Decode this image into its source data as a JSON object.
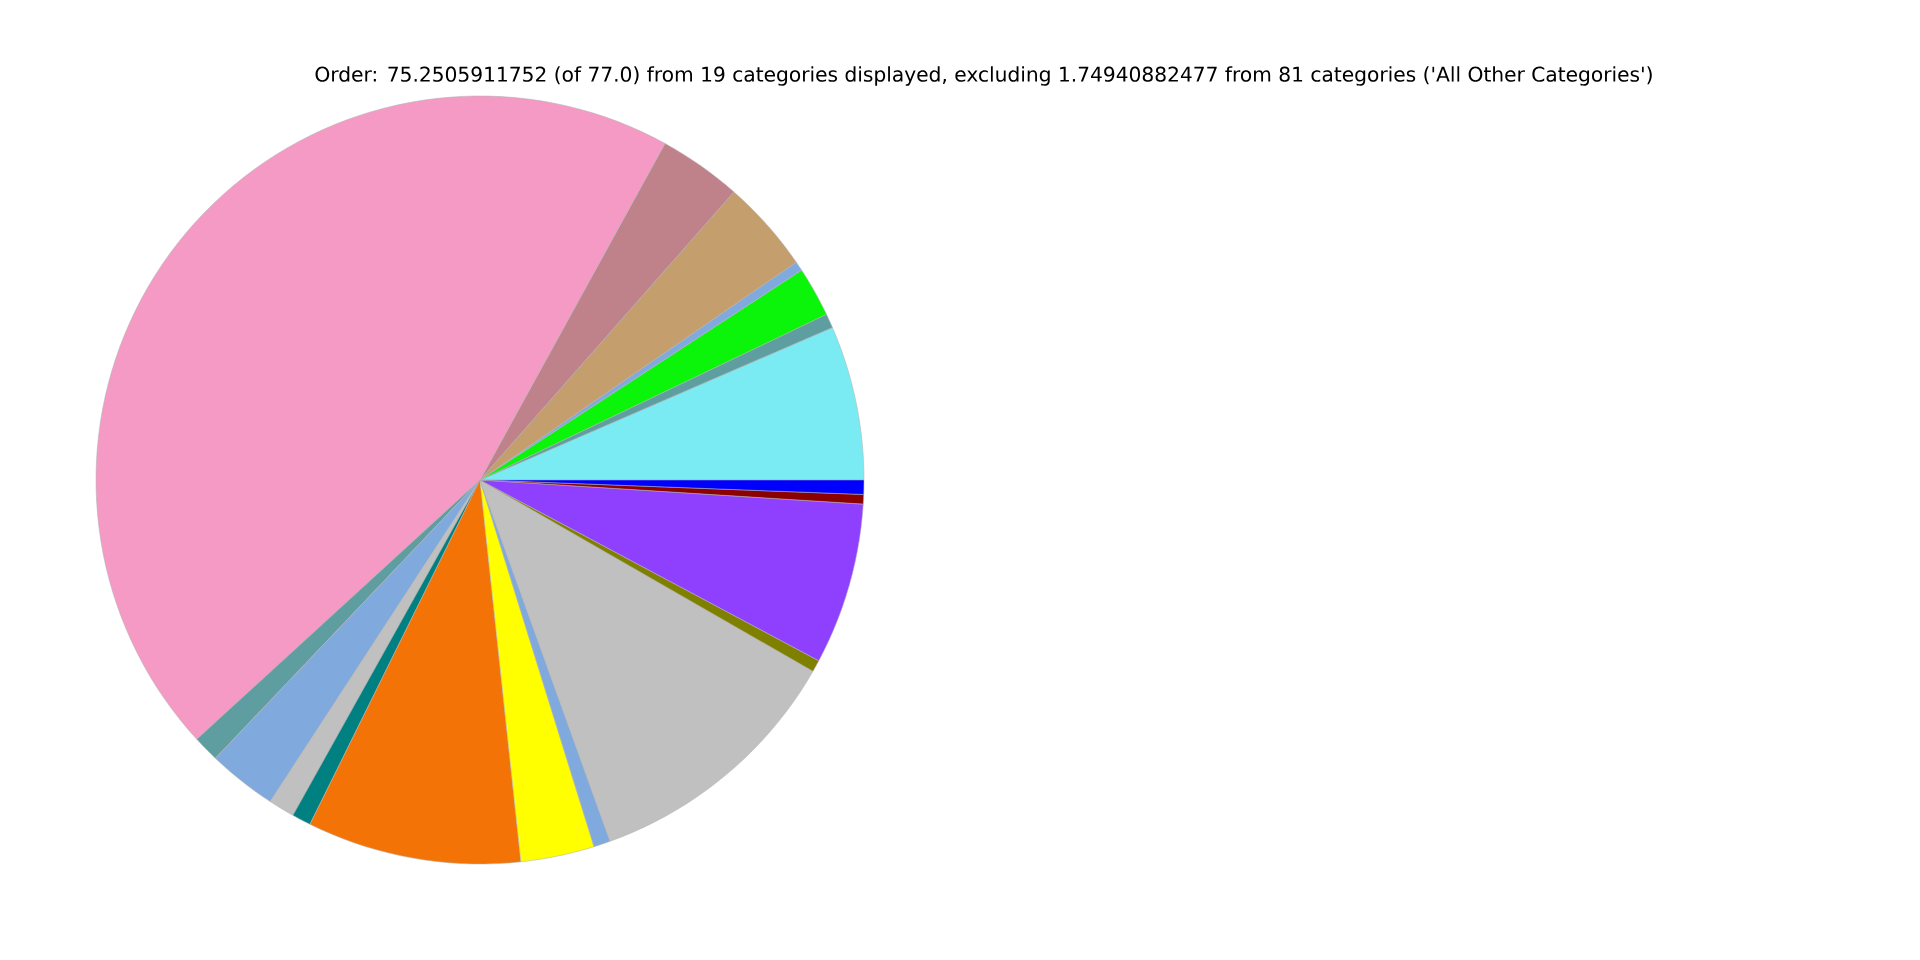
{
  "chart_data": {
    "type": "pie",
    "title": "Order: 75.2505911752 (of 77.0) from 19 categories displayed, excluding 1.74940882477 from 81 categories ('All Other Categories')",
    "categories": [
      null,
      null,
      null,
      null,
      null,
      null,
      null,
      null,
      null,
      null,
      null,
      null,
      null,
      null,
      null,
      null,
      null,
      null,
      null
    ],
    "values": [
      6.5,
      0.6,
      2.1,
      0.4,
      3.9,
      3.5,
      44.8,
      1.1,
      2.9,
      1.1,
      0.8,
      9.0,
      3.1,
      0.7,
      11.2,
      0.5,
      6.8,
      0.4,
      0.6
    ],
    "colors": [
      "#7aebf2",
      "#5f9ea0",
      "#0af50a",
      "#80aadd",
      "#c49e6c",
      "#c0828a",
      "#f49ac4",
      "#5f9ea0",
      "#80aadd",
      "#c0c0c0",
      "#008080",
      "#f47306",
      "#ffff00",
      "#80aadd",
      "#c0c0c0",
      "#808000",
      "#8f40ff",
      "#8b0000",
      "#0000ff"
    ]
  }
}
